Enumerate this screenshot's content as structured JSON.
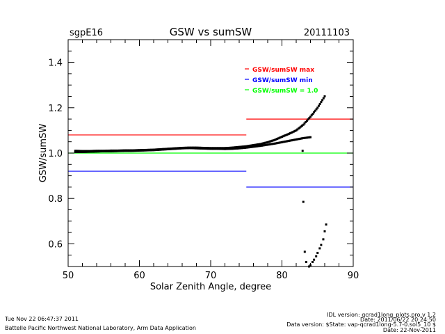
{
  "header": {
    "site": "sgpE16",
    "date": "20111103"
  },
  "footer": {
    "timestamp": "Tue Nov 22 06:47:37 2011",
    "organization": "Battelle Pacific Northwest National Laboratory, Arm Data Application",
    "idl_version": "IDL version: qcrad1long_plots.pro,v 1.2",
    "idl_date": "Date: 2011/06/22 20:24:50",
    "data_version": "Data version: $State: vap-qcrad1long-5.7-0.sol5_10 $",
    "data_date": "Date: 22-Nov-2011"
  },
  "chart_data": {
    "type": "scatter",
    "title": "GSW vs sumSW",
    "xlabel": "Solar Zenith Angle, degree",
    "ylabel": "GSW/sumSW",
    "xlim": [
      50,
      90
    ],
    "ylim": [
      0.5,
      1.5
    ],
    "xticks": [
      "50",
      "60",
      "70",
      "80",
      "90"
    ],
    "xtick_values": [
      50,
      60,
      70,
      80,
      90
    ],
    "yticks": [
      "0.6",
      "0.8",
      "1.0",
      "1.2",
      "1.4"
    ],
    "ytick_values": [
      0.6,
      0.8,
      1.0,
      1.2,
      1.4
    ],
    "legend": [
      {
        "label": "GSW/sumSW max",
        "color": "#ff0000"
      },
      {
        "label": "GSW/sumSW min",
        "color": "#0000ff"
      },
      {
        "label": "GSW/sumSW = 1.0",
        "color": "#00ff00"
      }
    ],
    "legend_position": "top-right",
    "reference_lines": [
      {
        "name": "max",
        "color": "#ff0000",
        "segments": [
          {
            "x": [
              50,
              75
            ],
            "y": 1.08
          },
          {
            "x": [
              75,
              90
            ],
            "y": 1.15
          }
        ]
      },
      {
        "name": "min",
        "color": "#0000ff",
        "segments": [
          {
            "x": [
              50,
              75
            ],
            "y": 0.92
          },
          {
            "x": [
              75,
              90
            ],
            "y": 0.85
          }
        ]
      },
      {
        "name": "one",
        "color": "#00ff00",
        "segments": [
          {
            "x": [
              50,
              90
            ],
            "y": 1.0
          }
        ]
      }
    ],
    "series": [
      {
        "name": "branch-lower",
        "x": [
          51,
          52,
          53,
          54,
          55,
          56,
          57,
          58,
          59,
          60,
          61,
          62,
          63,
          64,
          65,
          66,
          67,
          68,
          69,
          70,
          71,
          72,
          73,
          74,
          75,
          76,
          77,
          78,
          79,
          80,
          81,
          82,
          83,
          84
        ],
        "y": [
          1.005,
          1.005,
          1.006,
          1.007,
          1.008,
          1.008,
          1.009,
          1.01,
          1.01,
          1.011,
          1.012,
          1.013,
          1.015,
          1.017,
          1.019,
          1.021,
          1.022,
          1.021,
          1.02,
          1.019,
          1.019,
          1.018,
          1.019,
          1.021,
          1.024,
          1.028,
          1.032,
          1.037,
          1.042,
          1.048,
          1.054,
          1.06,
          1.066,
          1.07
        ]
      },
      {
        "name": "branch-upper",
        "x": [
          51,
          52,
          53,
          54,
          55,
          56,
          57,
          58,
          59,
          60,
          61,
          62,
          63,
          64,
          65,
          66,
          67,
          68,
          69,
          70,
          71,
          72,
          73,
          74,
          75,
          76,
          77,
          78,
          79,
          80,
          81,
          82,
          83,
          84,
          85,
          86
        ],
        "y": [
          1.01,
          1.009,
          1.009,
          1.01,
          1.01,
          1.011,
          1.011,
          1.012,
          1.012,
          1.013,
          1.014,
          1.015,
          1.017,
          1.019,
          1.021,
          1.023,
          1.024,
          1.024,
          1.023,
          1.022,
          1.022,
          1.022,
          1.024,
          1.027,
          1.03,
          1.035,
          1.04,
          1.048,
          1.058,
          1.072,
          1.085,
          1.1,
          1.125,
          1.16,
          1.2,
          1.25
        ]
      },
      {
        "name": "outliers",
        "x": [
          82.9,
          83.0,
          83.2,
          83.4,
          83.8,
          84.0,
          84.3,
          84.5,
          84.8,
          85.0,
          85.3,
          85.5,
          85.8,
          86.0,
          86.2
        ],
        "y": [
          1.01,
          0.785,
          0.565,
          0.52,
          0.5,
          0.505,
          0.52,
          0.53,
          0.545,
          0.56,
          0.58,
          0.595,
          0.62,
          0.655,
          0.685
        ]
      }
    ]
  }
}
